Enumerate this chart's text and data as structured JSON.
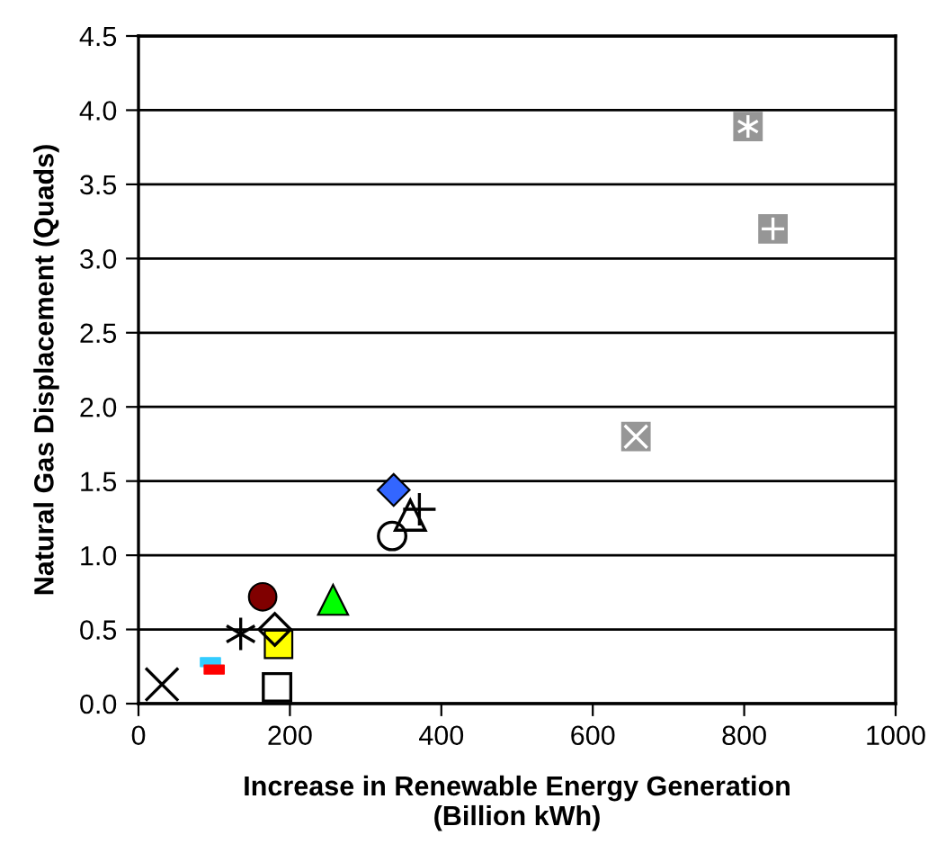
{
  "chart_data": {
    "type": "scatter",
    "xlabel": "Increase in Renewable Energy Generation\n(Billion kWh)",
    "ylabel": "Natural Gas Displacement (Quads)",
    "xlim": [
      0,
      1000
    ],
    "xticks": [
      0,
      200,
      400,
      600,
      800,
      1000
    ],
    "ylim": [
      0,
      4.5
    ],
    "yticks": [
      {
        "value": 0,
        "label": "0.0"
      },
      {
        "value": 0.5,
        "label": "0.5"
      },
      {
        "value": 1,
        "label": "1.0"
      },
      {
        "value": 1.5,
        "label": "1.5"
      },
      {
        "value": 2,
        "label": "2.0"
      },
      {
        "value": 2.5,
        "label": "2.5"
      },
      {
        "value": 3,
        "label": "3.0"
      },
      {
        "value": 3.5,
        "label": "3.5"
      },
      {
        "value": 4,
        "label": "4.0"
      },
      {
        "value": 4.5,
        "label": "4.5"
      }
    ],
    "grid": "y",
    "legend": false,
    "series": [
      {
        "x": [
          31
        ],
        "values": [
          0.13
        ],
        "marker": "cross",
        "color": "#000000"
      },
      {
        "x": [
          95
        ],
        "values": [
          0.28
        ],
        "marker": "square",
        "color": "#33ccff"
      },
      {
        "x": [
          100
        ],
        "values": [
          0.23
        ],
        "marker": "square",
        "color": "#ff0000"
      },
      {
        "x": [
          135
        ],
        "values": [
          0.47
        ],
        "marker": "cross",
        "color": "#000000"
      },
      {
        "x": [
          185
        ],
        "values": [
          0.4
        ],
        "marker": "square",
        "color": "#ffff00"
      },
      {
        "x": [
          180
        ],
        "values": [
          0.5
        ],
        "marker": "diamond",
        "color": "#000000"
      },
      {
        "x": [
          183
        ],
        "values": [
          0.11
        ],
        "marker": "square",
        "color": "#000000"
      },
      {
        "x": [
          164
        ],
        "values": [
          0.72
        ],
        "marker": "circle",
        "color": "#800000"
      },
      {
        "x": [
          257
        ],
        "values": [
          0.7
        ],
        "marker": "triangle",
        "color": "#00ff00"
      },
      {
        "x": [
          337
        ],
        "values": [
          1.44
        ],
        "marker": "diamond",
        "color": "#3366ff"
      },
      {
        "x": [
          335
        ],
        "values": [
          1.13
        ],
        "marker": "circle",
        "color": "#000000"
      },
      {
        "x": [
          359
        ],
        "values": [
          1.27
        ],
        "marker": "triangle",
        "color": "#000000"
      },
      {
        "x": [
          371
        ],
        "values": [
          1.31
        ],
        "marker": "cross",
        "color": "#000000"
      },
      {
        "x": [
          657
        ],
        "values": [
          1.8
        ],
        "marker": "square",
        "color": "#969696"
      },
      {
        "x": [
          805
        ],
        "values": [
          3.89
        ],
        "marker": "square",
        "color": "#969696"
      },
      {
        "x": [
          838
        ],
        "values": [
          3.2
        ],
        "marker": "square",
        "color": "#969696"
      }
    ]
  }
}
